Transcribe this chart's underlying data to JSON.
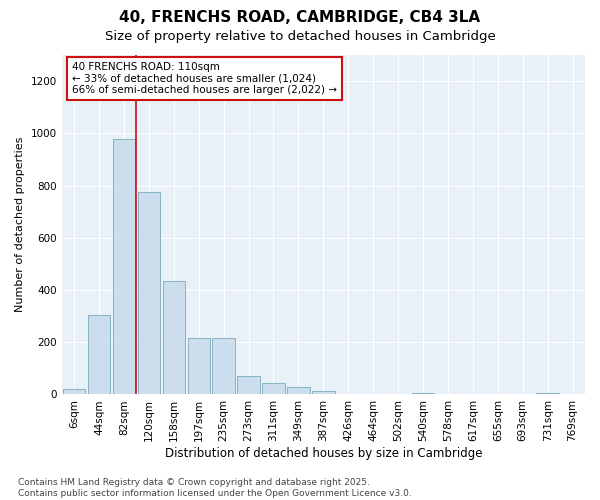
{
  "title": "40, FRENCHS ROAD, CAMBRIDGE, CB4 3LA",
  "subtitle": "Size of property relative to detached houses in Cambridge",
  "xlabel": "Distribution of detached houses by size in Cambridge",
  "ylabel": "Number of detached properties",
  "categories": [
    "6sqm",
    "44sqm",
    "82sqm",
    "120sqm",
    "158sqm",
    "197sqm",
    "235sqm",
    "273sqm",
    "311sqm",
    "349sqm",
    "387sqm",
    "426sqm",
    "464sqm",
    "502sqm",
    "540sqm",
    "578sqm",
    "617sqm",
    "655sqm",
    "693sqm",
    "731sqm",
    "769sqm"
  ],
  "values": [
    20,
    305,
    980,
    775,
    435,
    215,
    215,
    70,
    45,
    30,
    15,
    0,
    0,
    0,
    5,
    0,
    0,
    0,
    0,
    5,
    0
  ],
  "bar_color": "#ccdded",
  "bar_edge_color": "#7aaabb",
  "vline_bin": 3,
  "vline_color": "#cc1111",
  "annotation_text": "40 FRENCHS ROAD: 110sqm\n← 33% of detached houses are smaller (1,024)\n66% of semi-detached houses are larger (2,022) →",
  "annotation_box_color": "#ffffff",
  "annotation_box_edge": "#cc1111",
  "ylim": [
    0,
    1300
  ],
  "yticks": [
    0,
    200,
    400,
    600,
    800,
    1000,
    1200
  ],
  "plot_bg_color": "#e8f0f8",
  "fig_bg_color": "#ffffff",
  "footnote": "Contains HM Land Registry data © Crown copyright and database right 2025.\nContains public sector information licensed under the Open Government Licence v3.0.",
  "title_fontsize": 11,
  "subtitle_fontsize": 9.5,
  "xlabel_fontsize": 8.5,
  "ylabel_fontsize": 8,
  "tick_fontsize": 7.5,
  "annotation_fontsize": 7.5,
  "footnote_fontsize": 6.5
}
